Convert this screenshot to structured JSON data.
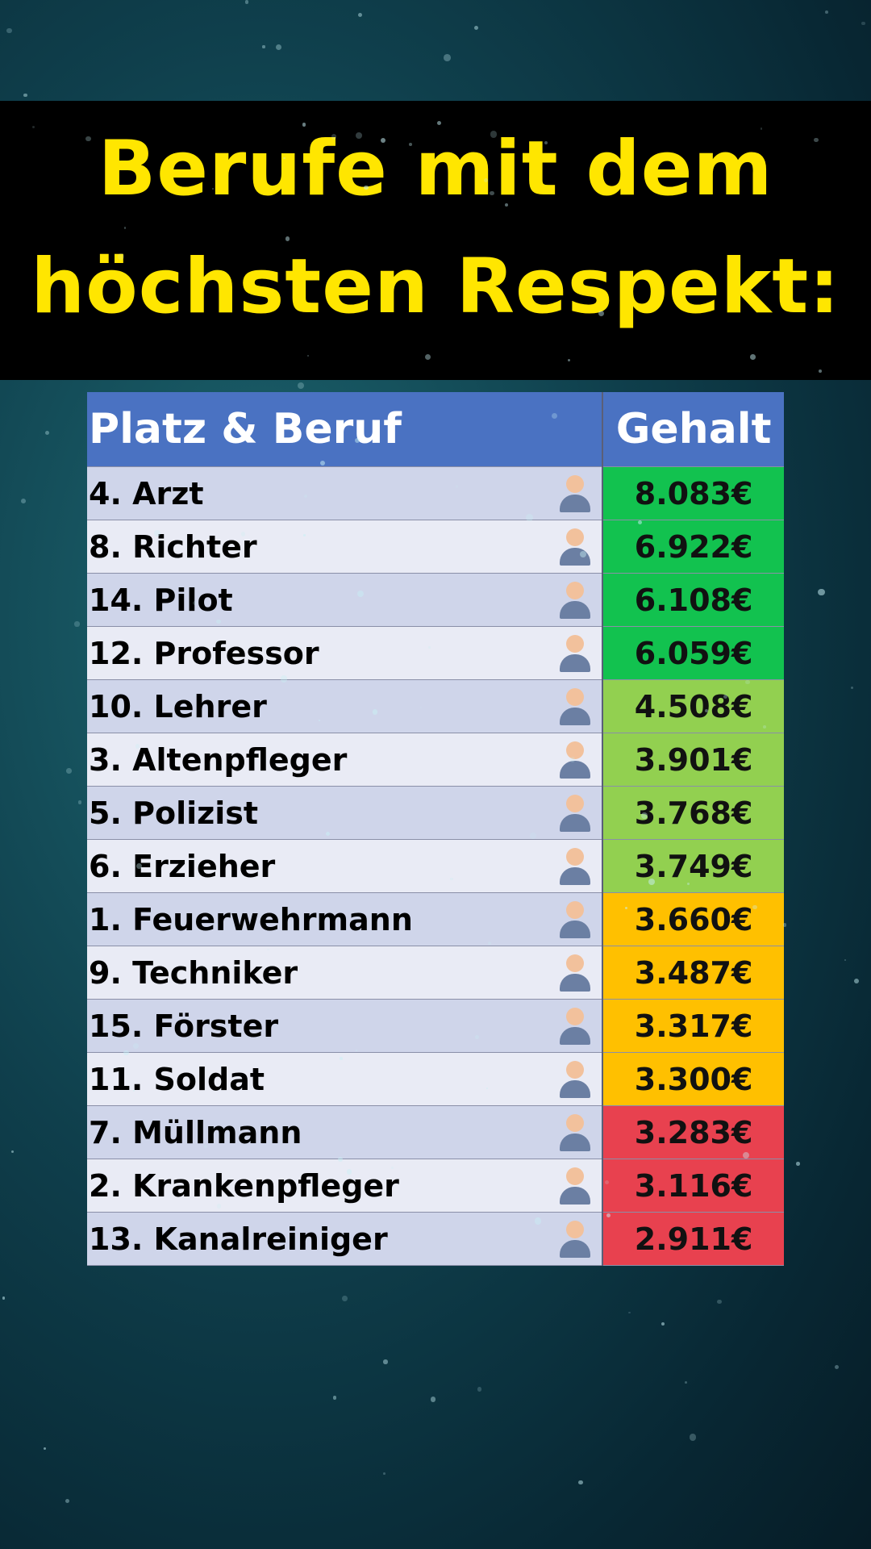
{
  "header": {
    "title": [
      "Berufe mit dem",
      "höchsten Respekt:"
    ]
  },
  "table": {
    "columns": [
      "Platz & Beruf",
      "Gehalt"
    ],
    "rows": [
      [
        "4. Arzt",
        "8.083€"
      ],
      [
        "8. Richter",
        "6.922€"
      ],
      [
        "14. Pilot",
        "6.108€"
      ],
      [
        "12. Professor",
        "6.059€"
      ],
      [
        "10. Lehrer",
        "4.508€"
      ],
      [
        "3. Altenpfleger",
        "3.901€"
      ],
      [
        "5. Polizist",
        "3.768€"
      ],
      [
        "6. Erzieher",
        "3.749€"
      ],
      [
        "1. Feuerwehrmann",
        "3.660€"
      ],
      [
        "9. Techniker",
        "3.487€"
      ],
      [
        "15. Förster",
        "3.317€"
      ],
      [
        "11. Soldat",
        "3.300€"
      ],
      [
        "7. Müllmann",
        "3.283€"
      ],
      [
        "2. Krankenpfleger",
        "3.116€"
      ],
      [
        "13. Kanalreiniger",
        "2.911€"
      ]
    ],
    "salary_colors": [
      "#12c24f",
      "#12c24f",
      "#12c24f",
      "#12c24f",
      "#92d050",
      "#92d050",
      "#92d050",
      "#92d050",
      "#ffc000",
      "#ffc000",
      "#ffc000",
      "#ffc000",
      "#e8414f",
      "#e8414f",
      "#e8414f"
    ]
  }
}
